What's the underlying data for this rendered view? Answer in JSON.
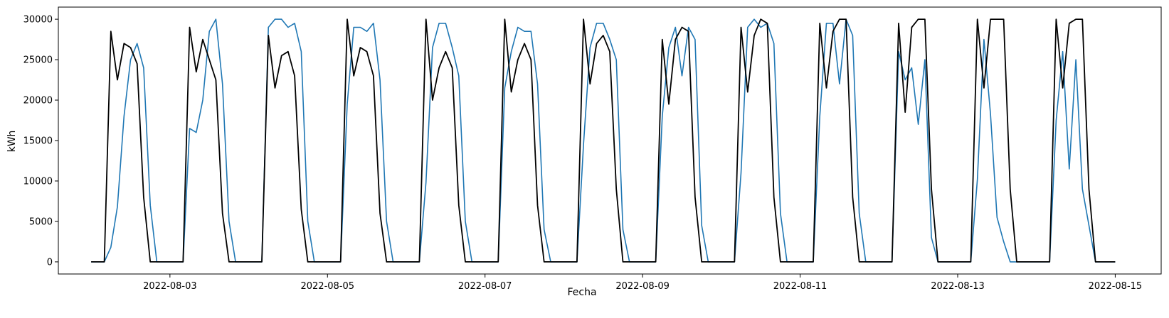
{
  "chart_data": {
    "type": "line",
    "title": "",
    "xlabel": "Fecha",
    "ylabel": "kWh",
    "x_start": "2022-08-02 00:00",
    "x_step_hours": 2,
    "xlim": [
      "2022-08-01 14:00",
      "2022-08-15 14:00"
    ],
    "ylim": [
      -1500,
      31500
    ],
    "grid": false,
    "legend": "none",
    "x_ticks": [
      {
        "date": "2022-08-03",
        "label": "2022-08-03"
      },
      {
        "date": "2022-08-05",
        "label": "2022-08-05"
      },
      {
        "date": "2022-08-07",
        "label": "2022-08-07"
      },
      {
        "date": "2022-08-09",
        "label": "2022-08-09"
      },
      {
        "date": "2022-08-11",
        "label": "2022-08-11"
      },
      {
        "date": "2022-08-13",
        "label": "2022-08-13"
      },
      {
        "date": "2022-08-15",
        "label": "2022-08-15"
      }
    ],
    "y_ticks": [
      {
        "value": 0,
        "label": "0"
      },
      {
        "value": 5000,
        "label": "5000"
      },
      {
        "value": 10000,
        "label": "10000"
      },
      {
        "value": 15000,
        "label": "15000"
      },
      {
        "value": 20000,
        "label": "20000"
      },
      {
        "value": 25000,
        "label": "25000"
      },
      {
        "value": 30000,
        "label": "30000"
      }
    ],
    "series": [
      {
        "color": "#1f77b4",
        "days": [
          [
            0,
            0,
            0,
            1800,
            6800,
            18000,
            25000,
            27000,
            24000,
            7000,
            0,
            0
          ],
          [
            0,
            0,
            0,
            16500,
            16000,
            20000,
            28500,
            30000,
            22000,
            5000,
            0,
            0
          ],
          [
            0,
            0,
            0,
            29000,
            30000,
            30000,
            29000,
            29500,
            26000,
            5000,
            0,
            0
          ],
          [
            0,
            0,
            0,
            19500,
            29000,
            29000,
            28500,
            29500,
            22500,
            5000,
            0,
            0
          ],
          [
            0,
            0,
            0,
            9800,
            26500,
            29500,
            29500,
            26500,
            23000,
            5000,
            0,
            0
          ],
          [
            0,
            0,
            0,
            21500,
            26000,
            29000,
            28500,
            28500,
            22000,
            4000,
            0,
            0
          ],
          [
            0,
            0,
            0,
            14500,
            26500,
            29500,
            29500,
            27500,
            25000,
            4000,
            0,
            0
          ],
          [
            0,
            0,
            0,
            18000,
            26500,
            29000,
            23000,
            29000,
            27500,
            4500,
            0,
            0
          ],
          [
            0,
            0,
            0,
            11000,
            29000,
            30000,
            29000,
            29500,
            27000,
            6000,
            0,
            0
          ],
          [
            0,
            0,
            0,
            18000,
            29500,
            29500,
            22000,
            30000,
            28000,
            6000,
            0,
            0
          ],
          [
            0,
            0,
            0,
            26000,
            22500,
            24000,
            17000,
            25000,
            3000,
            0,
            0,
            0
          ],
          [
            0,
            0,
            0,
            10200,
            27500,
            18300,
            5500,
            2500,
            0,
            0,
            0,
            0
          ],
          [
            0,
            0,
            0,
            17500,
            26000,
            11500,
            25000,
            9000,
            4500,
            0,
            0,
            0
          ]
        ]
      },
      {
        "color": "#000000",
        "days": [
          [
            0,
            0,
            0,
            28500,
            22500,
            27000,
            26500,
            24500,
            8000,
            0,
            0,
            0
          ],
          [
            0,
            0,
            0,
            29000,
            23500,
            27500,
            25000,
            22500,
            6000,
            0,
            0,
            0
          ],
          [
            0,
            0,
            0,
            28000,
            21500,
            25500,
            26000,
            23000,
            6500,
            0,
            0,
            0
          ],
          [
            0,
            0,
            0,
            30000,
            23000,
            26500,
            26000,
            23000,
            6000,
            0,
            0,
            0
          ],
          [
            0,
            0,
            0,
            30000,
            20000,
            24000,
            26000,
            24000,
            7000,
            0,
            0,
            0
          ],
          [
            0,
            0,
            0,
            30000,
            21000,
            25000,
            27000,
            25000,
            7000,
            0,
            0,
            0
          ],
          [
            0,
            0,
            0,
            30000,
            22000,
            27000,
            28000,
            26000,
            9000,
            0,
            0,
            0
          ],
          [
            0,
            0,
            0,
            27500,
            19500,
            27500,
            29000,
            28500,
            8000,
            0,
            0,
            0
          ],
          [
            0,
            0,
            0,
            29000,
            21000,
            28000,
            30000,
            29500,
            8000,
            0,
            0,
            0
          ],
          [
            0,
            0,
            0,
            29500,
            21500,
            28500,
            30000,
            30000,
            8000,
            0,
            0,
            0
          ],
          [
            0,
            0,
            0,
            29500,
            18500,
            29000,
            30000,
            30000,
            9000,
            0,
            0,
            0
          ],
          [
            0,
            0,
            0,
            30000,
            21500,
            30000,
            30000,
            30000,
            9000,
            0,
            0,
            0
          ],
          [
            0,
            0,
            0,
            30000,
            21500,
            29500,
            30000,
            30000,
            9000,
            0,
            0,
            0
          ]
        ]
      }
    ]
  }
}
